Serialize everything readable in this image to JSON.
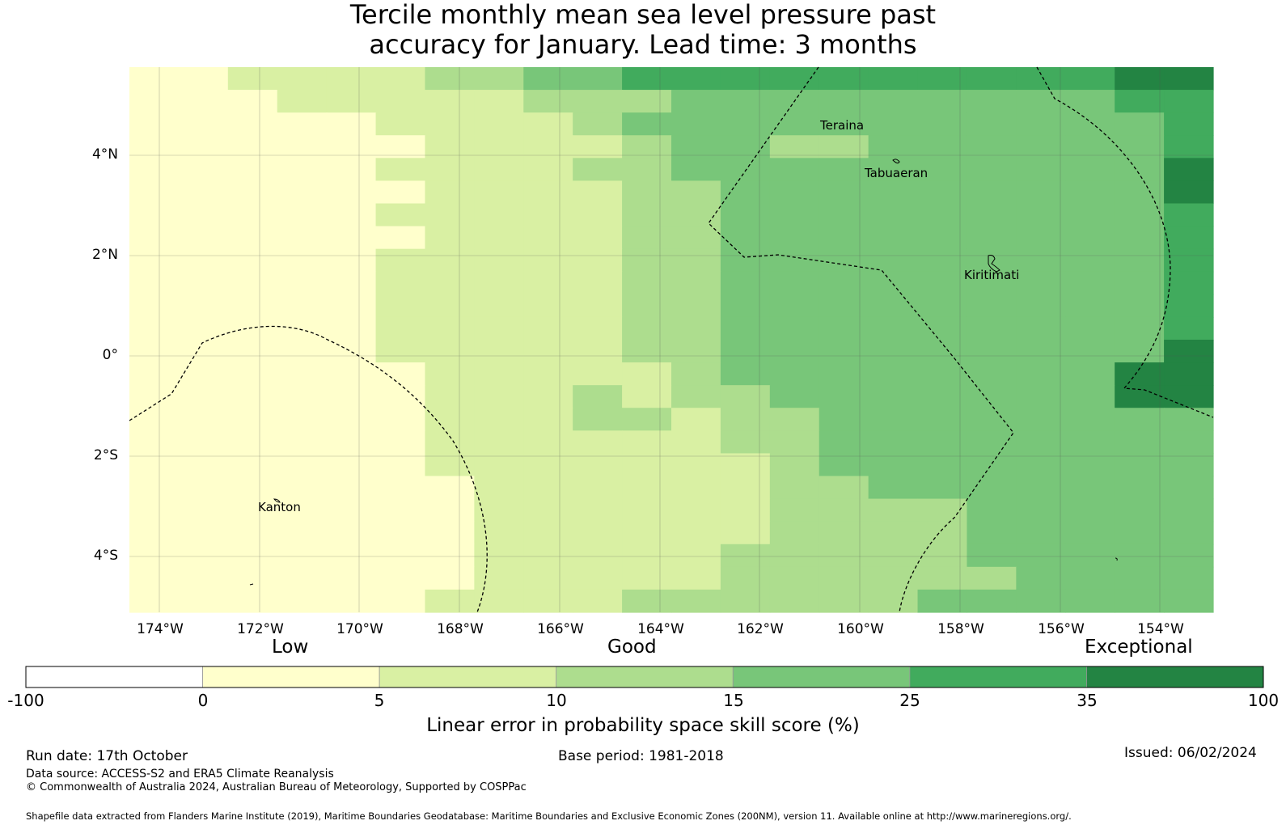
{
  "title_line1": "Tercile monthly mean sea level pressure past",
  "title_line2": "accuracy for January. Lead time: 3 months",
  "lat_labels": [
    "4°N",
    "2°N",
    "0°",
    "2°S",
    "4°S"
  ],
  "lon_labels": [
    "174°W",
    "172°W",
    "170°W",
    "168°W",
    "166°W",
    "164°W",
    "162°W",
    "160°W",
    "158°W",
    "156°W",
    "154°W"
  ],
  "places": [
    "Teraina",
    "Tabuaeran",
    "Kiritimati",
    "Kanton"
  ],
  "categories": [
    "Low",
    "Good",
    "Exceptional"
  ],
  "colorbar": {
    "ticks": [
      "-100",
      "0",
      "5",
      "10",
      "15",
      "25",
      "35",
      "100"
    ],
    "colors": [
      "#ffffff",
      "#ffffcc",
      "#d9f0a3",
      "#addd8e",
      "#78c679",
      "#41ab5d",
      "#238443"
    ],
    "label": "Linear error in probability space skill score (%)"
  },
  "footer": {
    "run_date": "Run date: 17th October",
    "base_period": "Base period: 1981-2018",
    "issued": "Issued: 06/02/2024",
    "data_source": "Data source: ACCESS-S2 and ERA5 Climate Reanalysis",
    "copyright": "© Commonwealth of Australia 2024, Australian Bureau of Meteorology, Supported by COSPPac",
    "shapefile": "Shapefile data extracted from Flanders Marine Institute (2019), Maritime Boundaries Geodatabase: Maritime Boundaries and Exclusive Economic Zones (200NM), version 11. Available online at http://www.marineregions.org/."
  },
  "map_data": {
    "skill_grid": [
      "1122223344555555555566",
      "1112222233344444444455",
      "1111122223444444444445",
      "1111112222344334444445",
      "1111122223344444444446",
      "1111112222334444444446",
      "1111122222334444444445",
      "1111112222334444444445",
      "1111122222334444444445",
      "1111122222334444444445",
      "1111122222334444444445",
      "1111122222334444444445",
      "1111122222334444444446",
      "1111112222234444444466",
      "1111112223233444444466",
      "1111112223323344444444",
      "1111112222223344444444",
      "1111112222222344444444",
      "1111111222222334444444",
      "1111111222222333344444",
      "1111111222222333344444",
      "1111111222223333344444",
      "1111111222223333334444",
      "1111112222333333444444"
    ],
    "grid_note": "skill category per grid cell: 1=0-5, 2=5-10, 3=10-15, 4=15-25, 5=25-35, 6=35-100"
  }
}
